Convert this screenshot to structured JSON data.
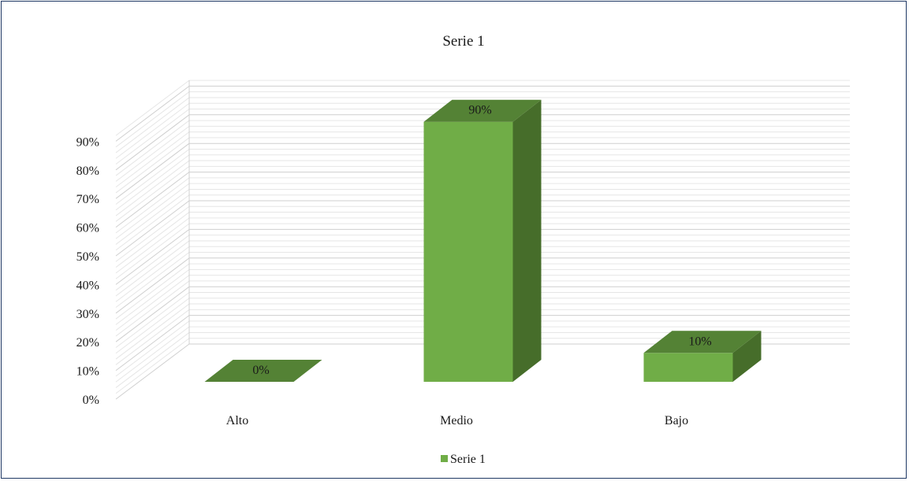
{
  "chart_data": {
    "type": "bar",
    "title": "Serie 1",
    "xlabel": "",
    "ylabel": "",
    "categories": [
      "Alto",
      "Medio",
      "Bajo"
    ],
    "series": [
      {
        "name": "Serie 1",
        "values": [
          0,
          90,
          10
        ],
        "data_labels": [
          "0%",
          "90%",
          "10%"
        ]
      }
    ],
    "ylim": [
      0,
      90
    ],
    "y_ticks": [
      "0%",
      "10%",
      "20%",
      "30%",
      "40%",
      "50%",
      "60%",
      "70%",
      "80%",
      "90%"
    ],
    "legend": {
      "position": "bottom",
      "entries": [
        "Serie 1"
      ]
    },
    "grid": true,
    "three_d": true,
    "colors": {
      "front": "#70ad47",
      "top": "#548235",
      "side": "#466d2a",
      "grid": "#d9d9d9",
      "border": "#1f3864"
    }
  }
}
